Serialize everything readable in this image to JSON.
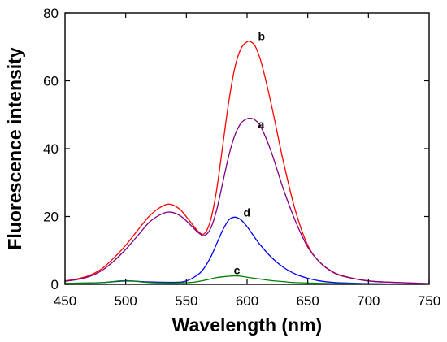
{
  "chart_data": {
    "type": "line",
    "title": "",
    "xlabel": "Wavelength (nm)",
    "ylabel": "Fluorescence intensity",
    "xlim": [
      450,
      750
    ],
    "ylim": [
      0,
      80
    ],
    "xticks": [
      450,
      500,
      550,
      600,
      650,
      700,
      750
    ],
    "yticks": [
      0,
      20,
      40,
      60,
      80
    ],
    "grid": false,
    "legend": "none",
    "series": [
      {
        "name": "b",
        "color": "#ff0000",
        "x": [
          450,
          460,
          470,
          480,
          490,
          500,
          510,
          520,
          530,
          537,
          545,
          552,
          560,
          565,
          570,
          575,
          580,
          585,
          590,
          595,
          600,
          603,
          607,
          612,
          620,
          630,
          640,
          650,
          660,
          670,
          680,
          700,
          720,
          750
        ],
        "y": [
          1,
          1.6,
          2.6,
          4.5,
          7.7,
          11.5,
          16,
          20.3,
          23,
          23.6,
          22,
          19,
          15.5,
          15,
          19,
          28,
          41,
          54,
          64,
          69.5,
          71.5,
          71.5,
          70,
          65,
          53,
          36,
          21.5,
          11.5,
          6.5,
          3.7,
          2.3,
          1,
          0.6,
          0.2
        ]
      },
      {
        "name": "a",
        "color": "#800080",
        "x": [
          450,
          460,
          470,
          480,
          490,
          500,
          510,
          520,
          530,
          537,
          545,
          552,
          560,
          565,
          570,
          575,
          580,
          585,
          590,
          595,
          600,
          604,
          608,
          612,
          620,
          630,
          640,
          650,
          660,
          670,
          680,
          700,
          720,
          750
        ],
        "y": [
          0.9,
          1.4,
          2.3,
          4,
          6.8,
          10.3,
          14.4,
          18.5,
          20.8,
          21.3,
          20.2,
          18,
          15.2,
          14.4,
          16.5,
          22,
          30,
          38,
          44,
          47.5,
          48.8,
          48.9,
          48,
          46,
          39,
          28,
          18.5,
          11,
          6.5,
          3.8,
          2.4,
          1,
          0.6,
          0.2
        ]
      },
      {
        "name": "d",
        "color": "#0000ff",
        "x": [
          450,
          480,
          500,
          520,
          540,
          550,
          560,
          565,
          570,
          575,
          580,
          585,
          590,
          595,
          600,
          605,
          610,
          620,
          630,
          640,
          650,
          660,
          670,
          680,
          700,
          720,
          750
        ],
        "y": [
          0.3,
          0.5,
          1,
          0.7,
          0.6,
          1,
          3,
          5,
          8,
          12,
          16,
          19,
          19.8,
          19,
          17,
          14.5,
          12,
          8,
          5,
          3,
          1.8,
          1,
          0.6,
          0.4,
          0.2,
          0.1,
          0.1
        ]
      },
      {
        "name": "c",
        "color": "#008000",
        "x": [
          450,
          480,
          500,
          520,
          540,
          555,
          565,
          575,
          585,
          590,
          595,
          600,
          610,
          620,
          630,
          640,
          660,
          680,
          700,
          750
        ],
        "y": [
          0.3,
          0.5,
          1.1,
          0.5,
          0.4,
          0.6,
          1.2,
          2,
          2.4,
          2.5,
          2.4,
          2.1,
          1.6,
          1.1,
          0.8,
          0.5,
          0.3,
          0.2,
          0.1,
          0.1
        ]
      }
    ],
    "annotations": [
      {
        "text": "b",
        "series": "b",
        "x": 609,
        "y": 72
      },
      {
        "text": "a",
        "series": "a",
        "x": 609,
        "y": 46
      },
      {
        "text": "d",
        "series": "d",
        "x": 597,
        "y": 20
      },
      {
        "text": "c",
        "series": "c",
        "x": 589,
        "y": 3
      }
    ]
  }
}
